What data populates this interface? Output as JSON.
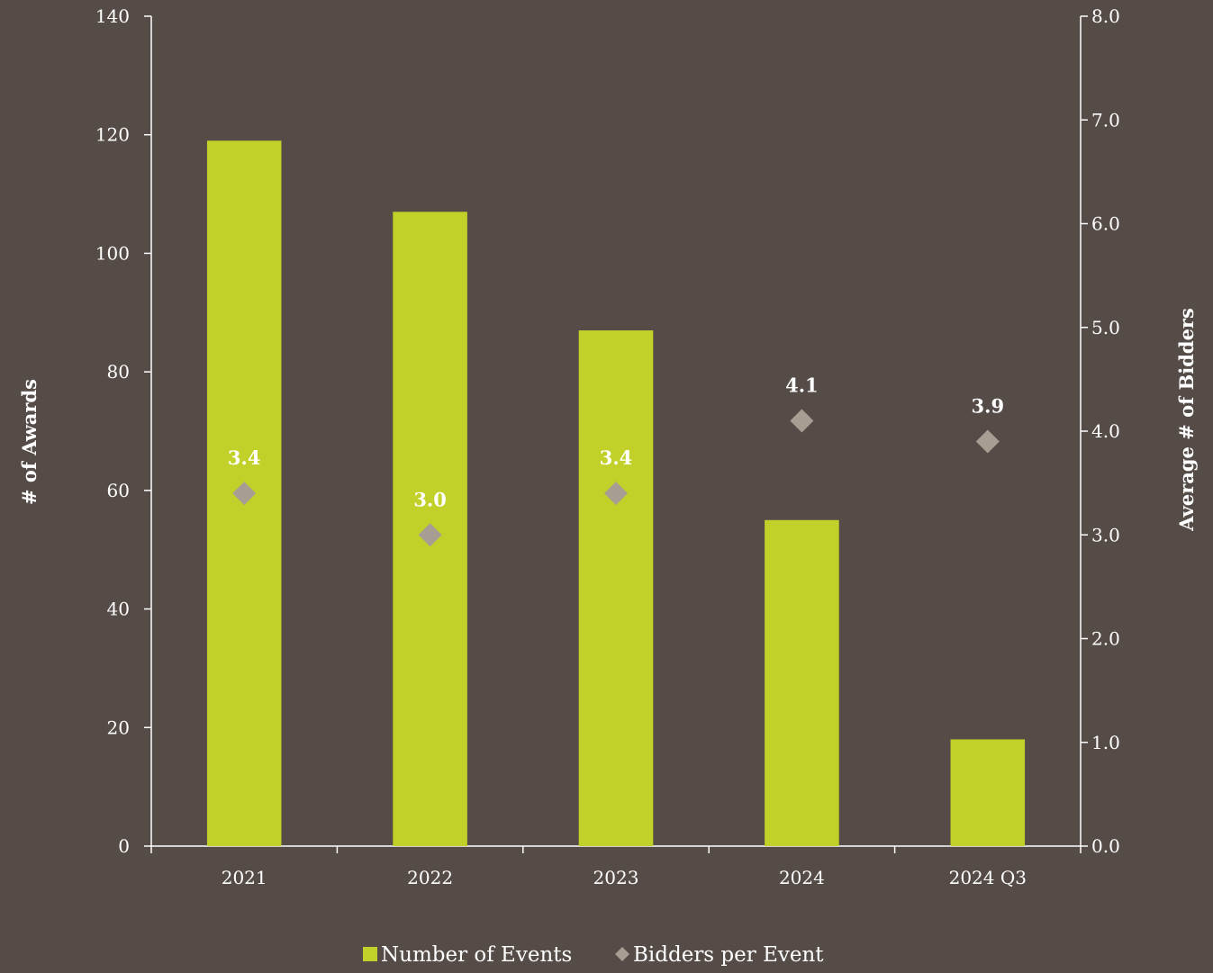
{
  "chart_data": {
    "type": "bar",
    "title": "",
    "categories": [
      "2021",
      "2022",
      "2023",
      "2024",
      "2024 Q3"
    ],
    "series": [
      {
        "name": "Number of Events",
        "kind": "bar",
        "axis": "left",
        "color": "#c2d12a",
        "values": [
          119,
          107,
          87,
          55,
          18
        ]
      },
      {
        "name": "Bidders per Event",
        "kind": "scatter",
        "marker": "diamond",
        "axis": "right",
        "color": "#a89d93",
        "values": [
          3.4,
          3.0,
          3.4,
          4.1,
          3.9
        ],
        "labels": [
          "3.4",
          "3.0",
          "3.4",
          "4.1",
          "3.9"
        ]
      }
    ],
    "y_left": {
      "label": "# of Awards",
      "ylim": [
        0,
        140
      ],
      "ticks": [
        0,
        20,
        40,
        60,
        80,
        100,
        120,
        140
      ],
      "tick_labels": [
        "0",
        "20",
        "40",
        "60",
        "80",
        "100",
        "120",
        "140"
      ]
    },
    "y_right": {
      "label": "Average # of Bidders",
      "ylim": [
        0,
        8
      ],
      "ticks": [
        0,
        1,
        2,
        3,
        4,
        5,
        6,
        7,
        8
      ],
      "tick_labels": [
        "0.0",
        "1.0",
        "2.0",
        "3.0",
        "4.0",
        "5.0",
        "6.0",
        "7.0",
        "8.0"
      ]
    },
    "xlabel": "",
    "grid": false,
    "legend": "bottom-center",
    "axis_color": "#ffffff",
    "text_color": "#ffffff",
    "background": "#554c48"
  }
}
